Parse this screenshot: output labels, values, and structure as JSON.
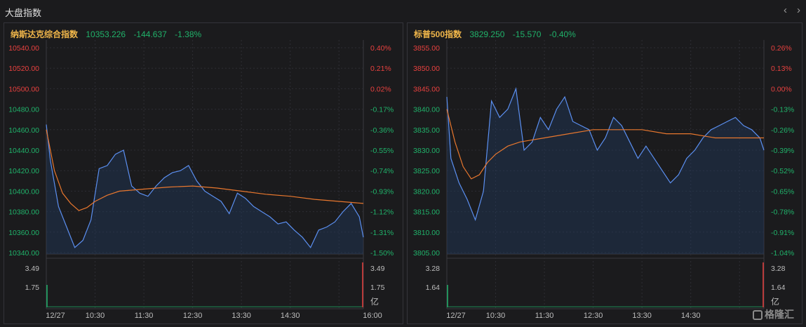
{
  "window": {
    "title": "大盘指数",
    "prev_icon": "chevron-left-icon",
    "next_icon": "chevron-right-icon"
  },
  "watermark": {
    "icon": "gelonghui-logo-icon",
    "text": "格隆汇"
  },
  "colors": {
    "up": "#e8413f",
    "down": "#20b26a",
    "price_line": "#5b8ff0",
    "avg_line": "#e8772e",
    "name": "#f0b64a"
  },
  "panels": [
    {
      "id": "nasdaq",
      "name": "纳斯达克综合指数",
      "price": "10353.226",
      "change": "-144.637",
      "change_pct": "-1.38%",
      "price_ticks": [
        "10540.00",
        "10520.00",
        "10500.00",
        "10480.00",
        "10460.00",
        "10440.00",
        "10420.00",
        "10400.00",
        "10380.00",
        "10360.00",
        "10340.00"
      ],
      "pct_ticks": [
        "0.40%",
        "0.21%",
        "0.02%",
        "-0.17%",
        "-0.36%",
        "-0.55%",
        "-0.74%",
        "-0.93%",
        "-1.12%",
        "-1.31%",
        "-1.50%"
      ],
      "zero_index": 2,
      "vol_ticks_left": [
        "3.49",
        "1.75"
      ],
      "vol_ticks_right": [
        "3.49",
        "1.75",
        "亿"
      ],
      "time_labels": [
        "12/27",
        "10:30",
        "11:30",
        "12:30",
        "13:30",
        "14:30",
        "16:00"
      ]
    },
    {
      "id": "sp500",
      "name": "标普500指数",
      "price": "3829.250",
      "change": "-15.570",
      "change_pct": "-0.40%",
      "price_ticks": [
        "3855.00",
        "3850.00",
        "3845.00",
        "3840.00",
        "3835.00",
        "3830.00",
        "3825.00",
        "3820.00",
        "3815.00",
        "3810.00",
        "3805.00"
      ],
      "pct_ticks": [
        "0.26%",
        "0.13%",
        "0.00%",
        "-0.13%",
        "-0.26%",
        "-0.39%",
        "-0.52%",
        "-0.65%",
        "-0.78%",
        "-0.91%",
        "-1.04%"
      ],
      "zero_index": 2,
      "vol_ticks_left": [
        "3.28",
        "1.64"
      ],
      "vol_ticks_right": [
        "3.28",
        "1.64",
        "亿"
      ],
      "time_labels": [
        "12/27",
        "10:30",
        "11:30",
        "12:30",
        "13:30",
        "14:30"
      ]
    }
  ],
  "chart_data": [
    {
      "type": "line",
      "title": "纳斯达克综合指数",
      "x_labels": [
        "12/27",
        "10:30",
        "11:30",
        "12:30",
        "13:30",
        "14:30",
        "16:00"
      ],
      "ylim": [
        10340,
        10540
      ],
      "grid": true,
      "series": [
        {
          "x": [
            "09:30",
            "09:35",
            "09:45",
            "09:55",
            "10:05",
            "10:15",
            "10:25",
            "10:35",
            "10:45",
            "10:55",
            "11:05",
            "11:15",
            "11:25",
            "11:35",
            "11:45",
            "11:55",
            "12:05",
            "12:15",
            "12:25",
            "12:35",
            "12:45",
            "12:55",
            "13:05",
            "13:15",
            "13:25",
            "13:35",
            "13:45",
            "13:55",
            "14:05",
            "14:15",
            "14:25",
            "14:35",
            "14:45",
            "14:55",
            "15:05",
            "15:15",
            "15:25",
            "15:35",
            "15:45",
            "15:55",
            "16:00"
          ],
          "values": [
            10465,
            10430,
            10385,
            10365,
            10345,
            10352,
            10372,
            10422,
            10425,
            10436,
            10440,
            10405,
            10398,
            10395,
            10405,
            10413,
            10418,
            10420,
            10425,
            10410,
            10400,
            10395,
            10390,
            10378,
            10398,
            10393,
            10385,
            10380,
            10375,
            10368,
            10370,
            10362,
            10355,
            10345,
            10362,
            10365,
            10370,
            10380,
            10388,
            10375,
            10355
          ]
        },
        {
          "x": [
            "09:30",
            "09:40",
            "09:50",
            "10:00",
            "10:10",
            "10:20",
            "10:30",
            "10:45",
            "11:00",
            "11:30",
            "12:00",
            "12:30",
            "13:00",
            "13:30",
            "14:00",
            "14:30",
            "15:00",
            "15:30",
            "16:00"
          ],
          "values": [
            10460,
            10420,
            10398,
            10388,
            10381,
            10384,
            10390,
            10396,
            10400,
            10402,
            10404,
            10405,
            10403,
            10400,
            10397,
            10395,
            10392,
            10390,
            10388
          ]
        }
      ]
    },
    {
      "type": "line",
      "title": "标普500指数",
      "x_labels": [
        "12/27",
        "10:30",
        "11:30",
        "12:30",
        "13:30",
        "14:30"
      ],
      "ylim": [
        3805,
        3855
      ],
      "grid": true,
      "series": [
        {
          "x": [
            "09:30",
            "09:35",
            "09:45",
            "09:55",
            "10:05",
            "10:15",
            "10:25",
            "10:35",
            "10:45",
            "10:55",
            "11:05",
            "11:15",
            "11:25",
            "11:35",
            "11:45",
            "11:55",
            "12:05",
            "12:15",
            "12:25",
            "12:35",
            "12:45",
            "12:55",
            "13:05",
            "13:15",
            "13:25",
            "13:35",
            "13:45",
            "13:55",
            "14:05",
            "14:15",
            "14:25",
            "14:35",
            "14:45",
            "14:55",
            "15:05",
            "15:15",
            "15:25",
            "15:35",
            "15:45",
            "15:55",
            "16:00"
          ],
          "values": [
            3843,
            3828,
            3822,
            3818,
            3813,
            3820,
            3842,
            3838,
            3840,
            3845,
            3830,
            3832,
            3838,
            3835,
            3840,
            3843,
            3837,
            3836,
            3835,
            3830,
            3833,
            3838,
            3836,
            3832,
            3828,
            3831,
            3828,
            3825,
            3822,
            3824,
            3828,
            3830,
            3833,
            3835,
            3836,
            3837,
            3838,
            3836,
            3835,
            3833,
            3830
          ]
        },
        {
          "x": [
            "09:30",
            "09:40",
            "09:50",
            "10:00",
            "10:10",
            "10:20",
            "10:30",
            "10:45",
            "11:00",
            "11:30",
            "12:00",
            "12:30",
            "13:00",
            "13:30",
            "14:00",
            "14:30",
            "15:00",
            "15:30",
            "16:00"
          ],
          "values": [
            3840,
            3832,
            3826,
            3823,
            3824,
            3827,
            3829,
            3831,
            3832,
            3833,
            3834,
            3835,
            3835,
            3835,
            3834,
            3834,
            3833,
            3833,
            3833
          ]
        }
      ]
    }
  ]
}
